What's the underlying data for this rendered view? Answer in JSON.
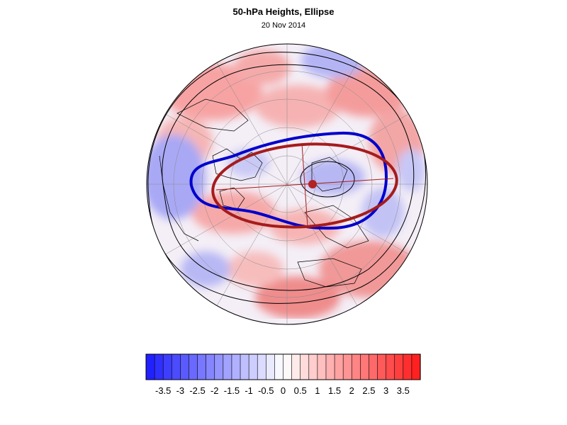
{
  "figure": {
    "title": "50-hPa Heights, Ellipse",
    "subtitle": "20 Nov 2014"
  },
  "colorbar": {
    "tick_labels": [
      "-3.5",
      "-3",
      "-2.5",
      "-2",
      "-1.5",
      "-1",
      "-0.5",
      "0",
      "0.5",
      "1",
      "1.5",
      "2",
      "2.5",
      "3",
      "3.5"
    ],
    "min": -4,
    "max": 4,
    "step": 0.25,
    "color_negative_end": "#1a1aff",
    "color_positive_end": "#ff1a1a",
    "color_center": "#ffffff"
  },
  "map": {
    "projection": "north-polar-stereographic",
    "field": "50-hPa height anomaly",
    "contour_color": "#000000",
    "blue_contour_color": "#0000cc",
    "ellipse_color": "#a51c1c",
    "ellipse_center_marker_color": "#b22222"
  }
}
